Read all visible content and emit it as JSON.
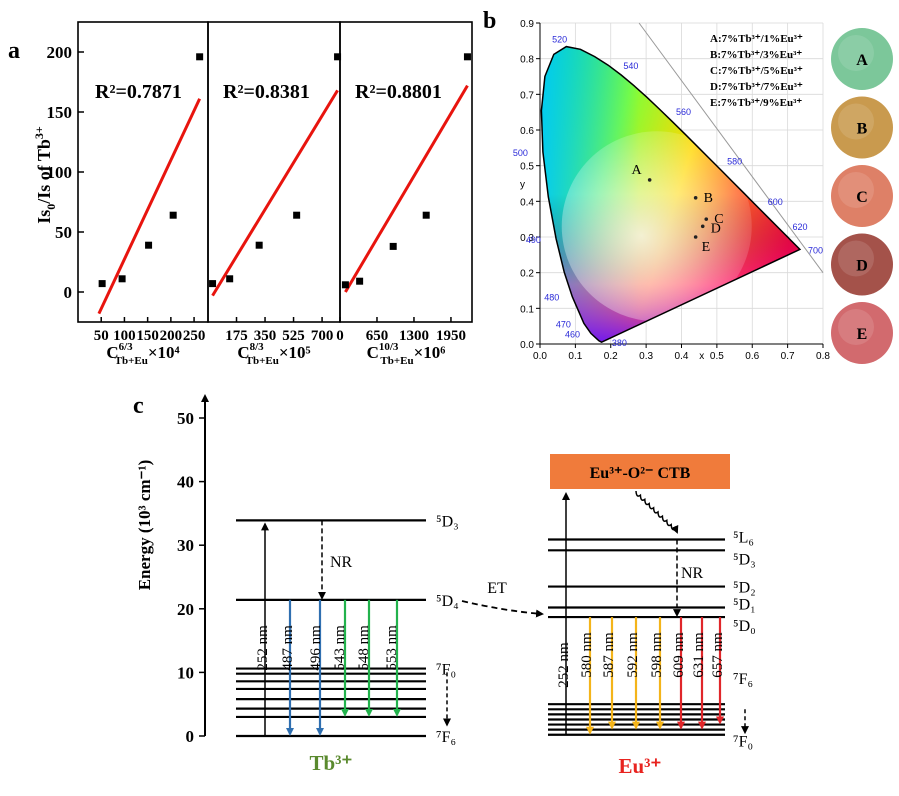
{
  "panel_labels": {
    "a": "a",
    "b": "b",
    "c": "c"
  },
  "panel_a": {
    "ylabel": "Is0/Is of Tb3+",
    "yticks": [
      "0",
      "50",
      "100",
      "150",
      "200"
    ],
    "subplots": [
      {
        "r2": "R²=0.7871",
        "xlabel_main": "C",
        "xlabel_sup": "6/3",
        "xlabel_sub": "Tb+Eu",
        "xlabel_tail": "×10⁴",
        "xticks": [
          "50",
          "100",
          "150",
          "200",
          "250"
        ]
      },
      {
        "r2": "R²=0.8381",
        "xlabel_main": "C",
        "xlabel_sup": "8/3",
        "xlabel_sub": "Tb+Eu",
        "xlabel_tail": "×10⁵",
        "xticks": [
          "175",
          "350",
          "525",
          "700"
        ]
      },
      {
        "r2": "R²=0.8801",
        "xlabel_main": "C",
        "xlabel_sup": "10/3",
        "xlabel_sub": "Tb+Eu",
        "xlabel_tail": "×10⁶",
        "xticks": [
          "0",
          "650",
          "1300",
          "1950"
        ]
      }
    ]
  },
  "panel_b": {
    "xlabel": "x",
    "ylabel": "y",
    "xticks": [
      "0.0",
      "0.1",
      "0.2",
      "0.3",
      "0.4",
      "0.5",
      "0.6",
      "0.7",
      "0.8"
    ],
    "yticks": [
      "0.0",
      "0.1",
      "0.2",
      "0.3",
      "0.4",
      "0.5",
      "0.6",
      "0.7",
      "0.8",
      "0.9"
    ],
    "wavelength_labels": [
      "380",
      "460",
      "470",
      "480",
      "490",
      "500",
      "520",
      "540",
      "560",
      "580",
      "600",
      "620",
      "700"
    ],
    "legend": [
      "A:7%Tb³⁺/1%Eu³⁺",
      "B:7%Tb³⁺/3%Eu³⁺",
      "C:7%Tb³⁺/5%Eu³⁺",
      "D:7%Tb³⁺/7%Eu³⁺",
      "E:7%Tb³⁺/9%Eu³⁺"
    ],
    "swatches": [
      {
        "label": "A",
        "color": "#7cc79a"
      },
      {
        "label": "B",
        "color": "#c99a4e"
      },
      {
        "label": "C",
        "color": "#de8067"
      },
      {
        "label": "D",
        "color": "#a4524a"
      },
      {
        "label": "E",
        "color": "#d26a6e"
      }
    ]
  },
  "panel_c": {
    "ylabel": "Energy (10³ cm⁻¹)",
    "yticks": [
      "0",
      "10",
      "20",
      "30",
      "40",
      "50"
    ],
    "tb_name": "Tb³⁺",
    "eu_name": "Eu³⁺",
    "tb_levels": {
      "d3": "⁵D₃",
      "d4": "⁵D₄",
      "f0": "⁷F₀",
      "f6": "⁷F₆"
    },
    "eu_levels": {
      "l6": "⁵L₆",
      "d3": "⁵D₃",
      "d2": "⁵D₂",
      "d1": "⁵D₁",
      "d0": "⁵D₀",
      "f6": "⁷F₆",
      "f0": "⁷F₀"
    },
    "ctb_label": "Eu³⁺-O²⁻ CTB",
    "nr_label": "NR",
    "et_label": "ET",
    "tb_lines": [
      "252 nm",
      "487 nm",
      "496 nm",
      "543 nm",
      "548 nm",
      "553 nm"
    ],
    "eu_lines": [
      "252 nm",
      "580 nm",
      "587 nm",
      "592 nm",
      "598 nm",
      "609 nm",
      "631 nm",
      "657 nm"
    ],
    "colors": {
      "blue": "#2f6fb0",
      "green": "#22b24c",
      "orange": "#f4b41a",
      "red": "#e0262a",
      "ctb": "#f07b3b",
      "tb_name": "#5a8a2e",
      "eu_name": "#e8231f"
    }
  },
  "chart_data": [
    {
      "type": "scatter",
      "title": "",
      "xlabel": "C(6/3) Tb+Eu ×10⁴",
      "ylabel": "Is0/Is of Tb3+",
      "xlim": [
        0,
        280
      ],
      "ylim": [
        -25,
        225
      ],
      "series": [
        {
          "x": [
            52,
            95,
            152,
            205,
            262
          ],
          "y": [
            7,
            11,
            39,
            64,
            196
          ]
        }
      ],
      "fit": {
        "x": [
          45,
          262
        ],
        "y": [
          -18,
          161
        ],
        "r2": "0.7871"
      }
    },
    {
      "type": "scatter",
      "title": "",
      "xlabel": "C(8/3) Tb+Eu ×10⁵",
      "ylabel": "",
      "xlim": [
        0,
        810
      ],
      "ylim": [
        -25,
        225
      ],
      "series": [
        {
          "x": [
            28,
            133,
            314,
            544,
            795
          ],
          "y": [
            7,
            11,
            39,
            64,
            196
          ]
        }
      ],
      "fit": {
        "x": [
          28,
          795
        ],
        "y": [
          -3,
          168
        ],
        "r2": "0.8381"
      }
    },
    {
      "type": "scatter",
      "title": "",
      "xlabel": "C(10/3) Tb+Eu ×10⁶",
      "ylabel": "",
      "xlim": [
        0,
        2320
      ],
      "ylim": [
        -25,
        225
      ],
      "series": [
        {
          "x": [
            95,
            345,
            935,
            1515,
            2240
          ],
          "y": [
            6,
            9,
            38,
            64,
            196
          ]
        }
      ],
      "fit": {
        "x": [
          95,
          2240
        ],
        "y": [
          0,
          172
        ],
        "r2": "0.8801"
      }
    },
    {
      "type": "scatter",
      "title": "",
      "xlabel": "x",
      "ylabel": "y",
      "xlim": [
        0,
        0.8
      ],
      "ylim": [
        0,
        0.9
      ],
      "series": [
        {
          "name": "A",
          "x": [
            0.31
          ],
          "y": [
            0.46
          ]
        },
        {
          "name": "B",
          "x": [
            0.44
          ],
          "y": [
            0.41
          ]
        },
        {
          "name": "C",
          "x": [
            0.47
          ],
          "y": [
            0.35
          ]
        },
        {
          "name": "D",
          "x": [
            0.46
          ],
          "y": [
            0.33
          ]
        },
        {
          "name": "E",
          "x": [
            0.44
          ],
          "y": [
            0.3
          ]
        }
      ]
    }
  ]
}
